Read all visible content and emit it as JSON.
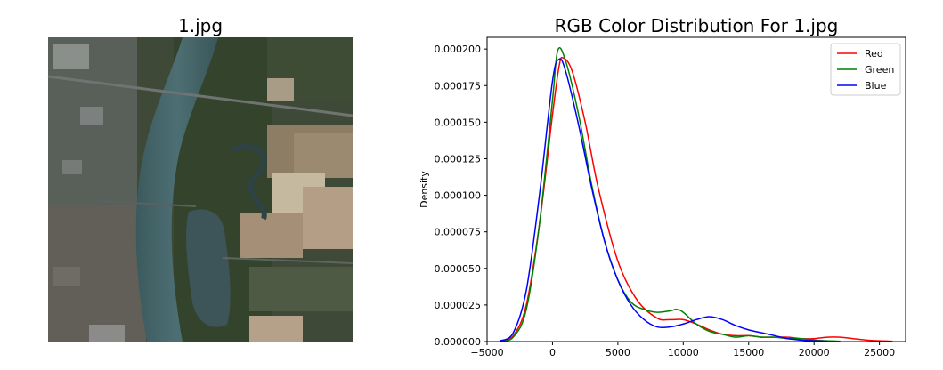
{
  "image_panel": {
    "title": "1.jpg"
  },
  "chart_data": {
    "type": "line",
    "title": "RGB Color Distribution For 1.jpg",
    "xlabel": "",
    "ylabel": "Density",
    "xlim": [
      -5000,
      27000
    ],
    "ylim": [
      0,
      0.000208
    ],
    "xticks": [
      -5000,
      0,
      5000,
      10000,
      15000,
      20000,
      25000
    ],
    "xtick_labels": [
      "−5000",
      "0",
      "5000",
      "10000",
      "15000",
      "20000",
      "25000"
    ],
    "yticks": [
      0,
      2.5e-05,
      5e-05,
      7.5e-05,
      0.0001,
      0.000125,
      0.00015,
      0.000175,
      0.0002
    ],
    "ytick_labels": [
      "0.000000",
      "0.000025",
      "0.000050",
      "0.000075",
      "0.000100",
      "0.000125",
      "0.000150",
      "0.000175",
      "0.000200"
    ],
    "grid": false,
    "legend_position": "top-right",
    "series": [
      {
        "name": "Red",
        "color": "#ff0000",
        "x": [
          -4000,
          -3000,
          -2000,
          -1000,
          0,
          500,
          800,
          1500,
          2500,
          3500,
          5000,
          6500,
          8000,
          9000,
          10000,
          11000,
          12000,
          13000,
          14000,
          15000,
          16000,
          17000,
          18000,
          19000,
          20000,
          21000,
          22000,
          23000,
          24000,
          25000,
          26000
        ],
        "y": [
          5e-07,
          4e-06,
          2.5e-05,
          8e-05,
          0.000155,
          0.000188,
          0.000194,
          0.000185,
          0.00015,
          0.000105,
          5.5e-05,
          2.8e-05,
          1.6e-05,
          1.5e-05,
          1.5e-05,
          1.2e-05,
          8e-06,
          5e-06,
          4e-06,
          4e-06,
          3e-06,
          3e-06,
          3e-06,
          2e-06,
          2e-06,
          3e-06,
          3e-06,
          2e-06,
          1e-06,
          5e-07,
          2e-07
        ]
      },
      {
        "name": "Green",
        "color": "#008000",
        "x": [
          -4000,
          -3000,
          -2000,
          -1000,
          0,
          400,
          1000,
          2000,
          3000,
          4000,
          5000,
          6000,
          7000,
          8000,
          9000,
          9500,
          10000,
          11000,
          12000,
          13000,
          14000,
          15000,
          16000,
          17000,
          18000,
          19000,
          20000,
          21000,
          22000
        ],
        "y": [
          3e-07,
          3e-06,
          2.2e-05,
          8e-05,
          0.000165,
          0.000199,
          0.000192,
          0.000155,
          0.000107,
          6.8e-05,
          4.2e-05,
          2.7e-05,
          2.2e-05,
          2e-05,
          2.1e-05,
          2.2e-05,
          2e-05,
          1.2e-05,
          7e-06,
          5e-06,
          3e-06,
          4e-06,
          3e-06,
          3e-06,
          2e-06,
          2e-06,
          1e-06,
          5e-07,
          2e-07
        ]
      },
      {
        "name": "Blue",
        "color": "#0000ff",
        "x": [
          -4000,
          -3000,
          -2000,
          -1000,
          0,
          500,
          1000,
          2000,
          3000,
          4000,
          5000,
          6000,
          7000,
          8000,
          9000,
          10000,
          11000,
          12000,
          13000,
          14000,
          15000,
          16000,
          17000,
          18000,
          19000,
          20000,
          21000
        ],
        "y": [
          5e-07,
          6e-06,
          3.5e-05,
          0.0001,
          0.000178,
          0.000193,
          0.000185,
          0.000148,
          0.000105,
          6.8e-05,
          4.2e-05,
          2.5e-05,
          1.5e-05,
          1e-05,
          1e-05,
          1.2e-05,
          1.5e-05,
          1.7e-05,
          1.5e-05,
          1.1e-05,
          8e-06,
          6e-06,
          4e-06,
          2e-06,
          1e-06,
          5e-07,
          2e-07
        ]
      }
    ]
  }
}
